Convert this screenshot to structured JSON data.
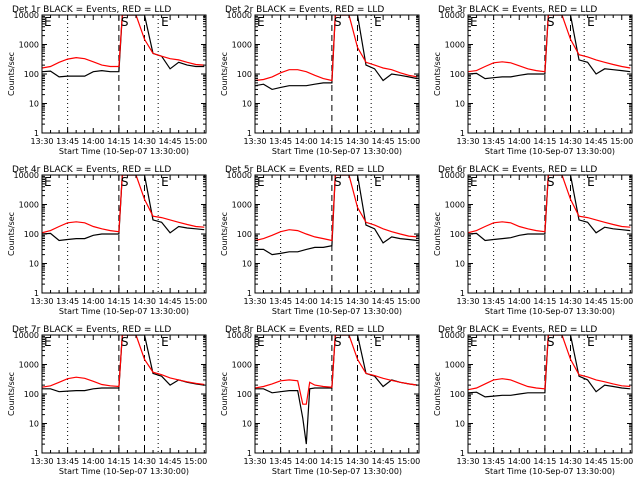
{
  "figure": {
    "x_ticks": [
      "13:30",
      "13:45",
      "14:00",
      "14:15",
      "14:30",
      "14:45",
      "15:00"
    ],
    "x_label": "Start Time (10-Sep-07 13:30:00)",
    "y_label": "Counts/sec",
    "y_ticks": [
      "1",
      "10",
      "100",
      "1000",
      "10000"
    ],
    "markers": {
      "s": "S",
      "e": "E"
    },
    "colors": {
      "events": "#000000",
      "lld": "#ff0000",
      "frame": "#000000"
    }
  },
  "chart_data": [
    {
      "type": "line",
      "title": "Det 1r BLACK = Events, RED = LLD",
      "xlabel": "Start Time (10-Sep-07 13:30:00)",
      "ylabel": "Counts/sec",
      "xlim": [
        0,
        96
      ],
      "ylim": [
        1,
        10000
      ],
      "y_scale": "log",
      "grid": false,
      "x_unit": "minutes since 13:30",
      "x": [
        0,
        5,
        10,
        15,
        20,
        25,
        30,
        35,
        40,
        45,
        47,
        50,
        55,
        60,
        65,
        70,
        75,
        80,
        85,
        90,
        95
      ],
      "vlines_dotted": [
        15,
        68
      ],
      "vlines_dashed": [
        45,
        60
      ],
      "marker_s_x": 45,
      "marker_e_x": 68,
      "series": [
        {
          "name": "Events",
          "color": "#000000",
          "values": [
            120,
            125,
            80,
            85,
            85,
            85,
            120,
            130,
            120,
            120,
            10000,
            10000,
            10000,
            10000,
            500,
            400,
            150,
            250,
            200,
            180,
            180
          ]
        },
        {
          "name": "LLD",
          "color": "#ff0000",
          "values": [
            160,
            180,
            250,
            320,
            360,
            330,
            260,
            200,
            180,
            180,
            10000,
            10000,
            10000,
            1500,
            500,
            400,
            330,
            300,
            250,
            210,
            200
          ]
        }
      ]
    },
    {
      "type": "line",
      "title": "Det 2r BLACK = Events, RED = LLD",
      "xlabel": "Start Time (10-Sep-07 13:30:00)",
      "ylabel": "Counts/sec",
      "xlim": [
        0,
        96
      ],
      "ylim": [
        1,
        10000
      ],
      "y_scale": "log",
      "grid": false,
      "x_unit": "minutes since 13:30",
      "x": [
        0,
        5,
        10,
        15,
        20,
        25,
        30,
        35,
        40,
        45,
        47,
        50,
        55,
        60,
        65,
        70,
        75,
        80,
        85,
        90,
        95
      ],
      "vlines_dotted": [
        15,
        68
      ],
      "vlines_dashed": [
        45,
        60
      ],
      "marker_s_x": 45,
      "marker_e_x": 68,
      "series": [
        {
          "name": "Events",
          "color": "#000000",
          "values": [
            40,
            45,
            30,
            35,
            40,
            40,
            40,
            45,
            50,
            50,
            10000,
            10000,
            10000,
            10000,
            200,
            150,
            60,
            100,
            90,
            80,
            70
          ]
        },
        {
          "name": "LLD",
          "color": "#ff0000",
          "values": [
            60,
            65,
            80,
            110,
            140,
            140,
            120,
            90,
            70,
            60,
            10000,
            10000,
            10000,
            800,
            250,
            200,
            160,
            140,
            110,
            90,
            80
          ]
        }
      ]
    },
    {
      "type": "line",
      "title": "Det 3r BLACK = Events, RED = LLD",
      "xlabel": "Start Time (10-Sep-07 13:30:00)",
      "ylabel": "Counts/sec",
      "xlim": [
        0,
        96
      ],
      "ylim": [
        1,
        10000
      ],
      "y_scale": "log",
      "grid": false,
      "x_unit": "minutes since 13:30",
      "x": [
        0,
        5,
        10,
        15,
        20,
        25,
        30,
        35,
        40,
        45,
        47,
        50,
        55,
        60,
        65,
        70,
        75,
        80,
        85,
        90,
        95
      ],
      "vlines_dotted": [
        15,
        68
      ],
      "vlines_dashed": [
        45,
        60
      ],
      "marker_s_x": 45,
      "marker_e_x": 68,
      "series": [
        {
          "name": "Events",
          "color": "#000000",
          "values": [
            100,
            105,
            70,
            75,
            80,
            80,
            90,
            100,
            100,
            100,
            10000,
            10000,
            10000,
            10000,
            300,
            250,
            100,
            150,
            140,
            130,
            120
          ]
        },
        {
          "name": "LLD",
          "color": "#ff0000",
          "values": [
            120,
            130,
            180,
            240,
            260,
            240,
            190,
            150,
            130,
            120,
            10000,
            10000,
            10000,
            1500,
            450,
            380,
            300,
            250,
            210,
            180,
            160
          ]
        }
      ]
    },
    {
      "type": "line",
      "title": "Det 4r BLACK = Events, RED = LLD",
      "xlabel": "Start Time (10-Sep-07 13:30:00)",
      "ylabel": "Counts/sec",
      "xlim": [
        0,
        96
      ],
      "ylim": [
        1,
        10000
      ],
      "y_scale": "log",
      "grid": false,
      "x_unit": "minutes since 13:30",
      "x": [
        0,
        5,
        10,
        15,
        20,
        25,
        30,
        35,
        40,
        45,
        47,
        50,
        55,
        60,
        65,
        70,
        75,
        80,
        85,
        90,
        95
      ],
      "vlines_dotted": [
        15,
        68
      ],
      "vlines_dashed": [
        45,
        60
      ],
      "marker_s_x": 45,
      "marker_e_x": 68,
      "series": [
        {
          "name": "Events",
          "color": "#000000",
          "values": [
            100,
            105,
            60,
            65,
            70,
            70,
            90,
            100,
            100,
            100,
            10000,
            10000,
            10000,
            10000,
            300,
            250,
            110,
            180,
            160,
            150,
            140
          ]
        },
        {
          "name": "LLD",
          "color": "#ff0000",
          "values": [
            110,
            130,
            180,
            240,
            260,
            240,
            180,
            150,
            130,
            120,
            10000,
            10000,
            10000,
            1500,
            400,
            360,
            300,
            250,
            210,
            180,
            170
          ]
        }
      ]
    },
    {
      "type": "line",
      "title": "Det 5r BLACK = Events, RED = LLD",
      "xlabel": "Start Time (10-Sep-07 13:30:00)",
      "ylabel": "Counts/sec",
      "xlim": [
        0,
        96
      ],
      "ylim": [
        1,
        10000
      ],
      "y_scale": "log",
      "grid": false,
      "x_unit": "minutes since 13:30",
      "x": [
        0,
        5,
        10,
        15,
        20,
        25,
        30,
        35,
        40,
        45,
        47,
        50,
        55,
        60,
        65,
        70,
        75,
        80,
        85,
        90,
        95
      ],
      "vlines_dotted": [
        15,
        68
      ],
      "vlines_dashed": [
        45,
        60
      ],
      "marker_s_x": 45,
      "marker_e_x": 68,
      "series": [
        {
          "name": "Events",
          "color": "#000000",
          "values": [
            30,
            30,
            20,
            22,
            25,
            25,
            30,
            35,
            35,
            40,
            10000,
            10000,
            10000,
            10000,
            200,
            150,
            50,
            80,
            70,
            65,
            60
          ]
        },
        {
          "name": "LLD",
          "color": "#ff0000",
          "values": [
            60,
            70,
            90,
            120,
            140,
            130,
            100,
            80,
            70,
            60,
            10000,
            10000,
            10000,
            800,
            250,
            200,
            150,
            120,
            100,
            85,
            80
          ]
        }
      ]
    },
    {
      "type": "line",
      "title": "Det 6r BLACK = Events, RED = LLD",
      "xlabel": "Start Time (10-Sep-07 13:30:00)",
      "ylabel": "Counts/sec",
      "xlim": [
        0,
        96
      ],
      "ylim": [
        1,
        10000
      ],
      "y_scale": "log",
      "grid": false,
      "x_unit": "minutes since 13:30",
      "x": [
        0,
        5,
        10,
        15,
        20,
        25,
        30,
        35,
        40,
        45,
        47,
        50,
        55,
        60,
        65,
        70,
        75,
        80,
        85,
        90,
        95
      ],
      "vlines_dotted": [
        15,
        68
      ],
      "vlines_dashed": [
        45,
        60
      ],
      "marker_s_x": 45,
      "marker_e_x": 68,
      "series": [
        {
          "name": "Events",
          "color": "#000000",
          "values": [
            100,
            105,
            60,
            65,
            70,
            75,
            90,
            100,
            100,
            100,
            10000,
            10000,
            10000,
            10000,
            300,
            250,
            110,
            170,
            150,
            140,
            130
          ]
        },
        {
          "name": "LLD",
          "color": "#ff0000",
          "values": [
            110,
            130,
            180,
            240,
            260,
            240,
            180,
            150,
            130,
            120,
            10000,
            10000,
            10000,
            1500,
            400,
            360,
            300,
            250,
            210,
            180,
            170
          ]
        }
      ]
    },
    {
      "type": "line",
      "title": "Det 7r BLACK = Events, RED = LLD",
      "xlabel": "Start Time (10-Sep-07 13:30:00)",
      "ylabel": "Counts/sec",
      "xlim": [
        0,
        96
      ],
      "ylim": [
        1,
        10000
      ],
      "y_scale": "log",
      "grid": false,
      "x_unit": "minutes since 13:30",
      "x": [
        0,
        5,
        10,
        15,
        20,
        25,
        30,
        35,
        40,
        45,
        47,
        50,
        55,
        60,
        65,
        70,
        75,
        80,
        85,
        90,
        95
      ],
      "vlines_dotted": [
        15,
        68
      ],
      "vlines_dashed": [
        45,
        60
      ],
      "marker_s_x": 45,
      "marker_e_x": 68,
      "series": [
        {
          "name": "Events",
          "color": "#000000",
          "values": [
            150,
            150,
            120,
            125,
            130,
            130,
            150,
            160,
            160,
            160,
            10000,
            10000,
            10000,
            10000,
            500,
            400,
            200,
            300,
            250,
            220,
            200
          ]
        },
        {
          "name": "LLD",
          "color": "#ff0000",
          "values": [
            170,
            190,
            250,
            330,
            370,
            340,
            270,
            210,
            190,
            180,
            10000,
            10000,
            10000,
            1500,
            550,
            450,
            350,
            300,
            260,
            230,
            210
          ]
        }
      ]
    },
    {
      "type": "line",
      "title": "Det 8r BLACK = Events, RED = LLD",
      "xlabel": "Start Time (10-Sep-07 13:30:00)",
      "ylabel": "Counts/sec",
      "xlim": [
        0,
        96
      ],
      "ylim": [
        1,
        10000
      ],
      "y_scale": "log",
      "grid": false,
      "x_unit": "minutes since 13:30",
      "x": [
        0,
        5,
        10,
        15,
        20,
        25,
        28,
        30,
        32,
        35,
        40,
        45,
        47,
        50,
        55,
        60,
        65,
        70,
        75,
        80,
        85,
        90,
        95
      ],
      "vlines_dotted": [
        15,
        68
      ],
      "vlines_dashed": [
        45,
        60
      ],
      "marker_s_x": 45,
      "marker_e_x": 68,
      "series": [
        {
          "name": "Events",
          "color": "#000000",
          "values": [
            150,
            150,
            110,
            120,
            130,
            130,
            15,
            2,
            150,
            160,
            160,
            160,
            10000,
            10000,
            10000,
            10000,
            500,
            400,
            180,
            300,
            250,
            220,
            200
          ]
        },
        {
          "name": "LLD",
          "color": "#ff0000",
          "values": [
            160,
            180,
            220,
            280,
            300,
            280,
            45,
            45,
            250,
            200,
            180,
            170,
            10000,
            10000,
            10000,
            1500,
            500,
            420,
            340,
            290,
            250,
            220,
            200
          ]
        }
      ]
    },
    {
      "type": "line",
      "title": "Det 9r BLACK = Events, RED = LLD",
      "xlabel": "Start Time (10-Sep-07 13:30:00)",
      "ylabel": "Counts/sec",
      "xlim": [
        0,
        96
      ],
      "ylim": [
        1,
        10000
      ],
      "y_scale": "log",
      "grid": false,
      "x_unit": "minutes since 13:30",
      "x": [
        0,
        5,
        10,
        15,
        20,
        25,
        30,
        35,
        40,
        45,
        47,
        50,
        55,
        60,
        65,
        70,
        75,
        80,
        85,
        90,
        95
      ],
      "vlines_dotted": [
        15,
        68
      ],
      "vlines_dashed": [
        45,
        60
      ],
      "marker_s_x": 45,
      "marker_e_x": 68,
      "series": [
        {
          "name": "Events",
          "color": "#000000",
          "values": [
            110,
            115,
            80,
            85,
            90,
            90,
            100,
            110,
            110,
            110,
            10000,
            10000,
            10000,
            10000,
            400,
            300,
            120,
            200,
            180,
            160,
            150
          ]
        },
        {
          "name": "LLD",
          "color": "#ff0000",
          "values": [
            140,
            160,
            220,
            300,
            330,
            300,
            230,
            180,
            160,
            150,
            10000,
            10000,
            10000,
            1500,
            450,
            380,
            300,
            260,
            220,
            190,
            180
          ]
        }
      ]
    }
  ]
}
